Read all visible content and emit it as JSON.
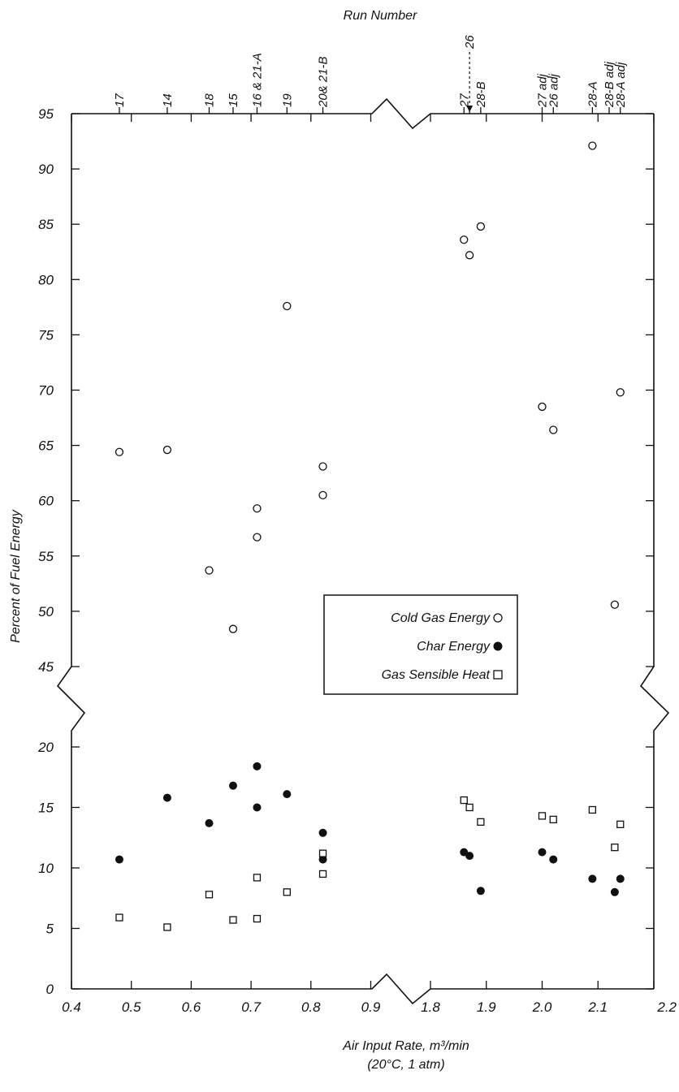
{
  "chart_data": {
    "type": "scatter",
    "title": "",
    "top_axis_title": "Run Number",
    "xlabel": "Air Input Rate, m³/min",
    "xlabel_sub": "(20°C, 1 atm)",
    "ylabel": "Percent of Fuel Energy",
    "x_axis_segments": [
      {
        "range": [
          0.4,
          0.9
        ],
        "ticks": [
          "0.4",
          "0.5",
          "0.6",
          "0.7",
          "0.8",
          "0.9"
        ]
      },
      {
        "range": [
          1.8,
          2.2
        ],
        "ticks": [
          "1.8",
          "1.9",
          "2.0",
          "2.1",
          "2.2"
        ]
      }
    ],
    "y_axis_segments": [
      {
        "range": [
          0,
          20
        ],
        "ticks": [
          "0",
          "5",
          "10",
          "15",
          "20"
        ]
      },
      {
        "range": [
          45,
          95
        ],
        "ticks": [
          "45",
          "50",
          "55",
          "60",
          "65",
          "70",
          "75",
          "80",
          "85",
          "90",
          "95"
        ]
      }
    ],
    "run_labels": [
      {
        "label": "17",
        "x": 0.48
      },
      {
        "label": "14",
        "x": 0.56
      },
      {
        "label": "18",
        "x": 0.63
      },
      {
        "label": "15",
        "x": 0.67
      },
      {
        "label": "16 & 21-A",
        "x": 0.71
      },
      {
        "label": "19",
        "x": 0.76
      },
      {
        "label": "20& 21-B",
        "x": 0.82
      },
      {
        "label": "27",
        "x": 1.86
      },
      {
        "label": "26",
        "x": 1.87,
        "arrow": true
      },
      {
        "label": "28-B",
        "x": 1.89
      },
      {
        "label": "27 adj",
        "x": 2.0
      },
      {
        "label": "26 adj",
        "x": 2.02
      },
      {
        "label": "28-A",
        "x": 2.09
      },
      {
        "label": "28-B adj",
        "x": 2.12
      },
      {
        "label": "28-A adj",
        "x": 2.14
      }
    ],
    "series": [
      {
        "name": "Cold Gas Energy",
        "marker": "open-circle",
        "points": [
          [
            0.48,
            64.4
          ],
          [
            0.56,
            64.6
          ],
          [
            0.63,
            53.7
          ],
          [
            0.67,
            48.4
          ],
          [
            0.71,
            59.3
          ],
          [
            0.71,
            56.7
          ],
          [
            0.76,
            77.6
          ],
          [
            0.82,
            63.1
          ],
          [
            0.82,
            60.5
          ],
          [
            1.86,
            83.6
          ],
          [
            1.87,
            82.2
          ],
          [
            1.89,
            84.8
          ],
          [
            2.0,
            68.5
          ],
          [
            2.02,
            66.4
          ],
          [
            2.09,
            92.1
          ],
          [
            2.13,
            50.6
          ],
          [
            2.14,
            69.8
          ]
        ]
      },
      {
        "name": "Char Energy",
        "marker": "filled-circle",
        "points": [
          [
            0.48,
            10.7
          ],
          [
            0.56,
            15.8
          ],
          [
            0.63,
            13.7
          ],
          [
            0.67,
            16.8
          ],
          [
            0.71,
            18.4
          ],
          [
            0.71,
            15.0
          ],
          [
            0.76,
            16.1
          ],
          [
            0.82,
            12.9
          ],
          [
            0.82,
            10.7
          ],
          [
            1.86,
            11.3
          ],
          [
            1.87,
            11.0
          ],
          [
            1.89,
            8.1
          ],
          [
            2.0,
            11.3
          ],
          [
            2.02,
            10.7
          ],
          [
            2.09,
            9.1
          ],
          [
            2.13,
            8.0
          ],
          [
            2.14,
            9.1
          ]
        ]
      },
      {
        "name": "Gas Sensible Heat",
        "marker": "open-square",
        "points": [
          [
            0.48,
            5.9
          ],
          [
            0.56,
            5.1
          ],
          [
            0.63,
            7.8
          ],
          [
            0.67,
            5.7
          ],
          [
            0.71,
            9.2
          ],
          [
            0.71,
            5.8
          ],
          [
            0.76,
            8.0
          ],
          [
            0.82,
            11.2
          ],
          [
            0.82,
            9.5
          ],
          [
            1.86,
            15.6
          ],
          [
            1.87,
            15.0
          ],
          [
            1.89,
            13.8
          ],
          [
            2.0,
            14.3
          ],
          [
            2.02,
            14.0
          ],
          [
            2.09,
            14.8
          ],
          [
            2.13,
            11.7
          ],
          [
            2.14,
            13.6
          ]
        ]
      }
    ],
    "legend": {
      "placement": "center",
      "entries": [
        "Cold Gas Energy",
        "Char Energy",
        "Gas Sensible Heat"
      ]
    },
    "grid": false
  }
}
